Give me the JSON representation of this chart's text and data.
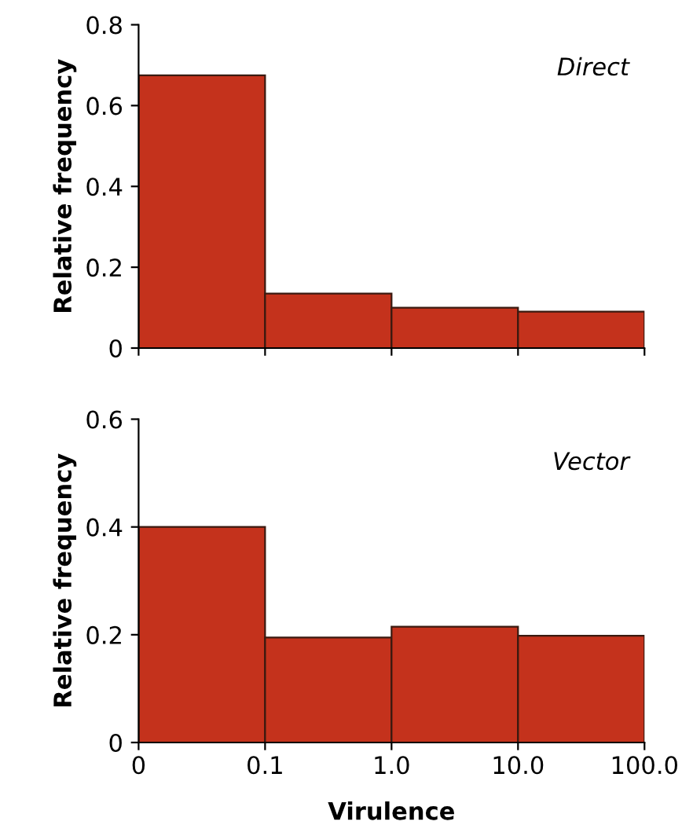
{
  "chart_data": [
    {
      "type": "bar",
      "ylabel": "Relative frequency",
      "annotations": [
        "Direct"
      ],
      "categories": [
        null,
        null,
        null,
        null
      ],
      "values": [
        0.675,
        0.135,
        0.1,
        0.09
      ],
      "color": "#c4321c",
      "ylim": [
        0,
        0.8
      ],
      "yticks": [
        {
          "value": 0,
          "label": "0"
        },
        0.2,
        0.4,
        0.6,
        0.8
      ],
      "tick_labels": "y"
    },
    {
      "type": "bar",
      "xlabel": "Virulence",
      "ylabel": "Relative frequency",
      "annotations": [
        "Vector",
        "0",
        "0.1",
        "1.0",
        "10.0",
        "100.0"
      ],
      "categories": [
        null,
        null,
        null,
        null
      ],
      "values": [
        0.4,
        0.195,
        0.215,
        0.198
      ],
      "color": "#c4321c",
      "ylim": [
        0,
        0.6
      ],
      "yticks": [
        {
          "value": 0,
          "label": "0"
        },
        0.2,
        0.4,
        0.6
      ]
    }
  ]
}
